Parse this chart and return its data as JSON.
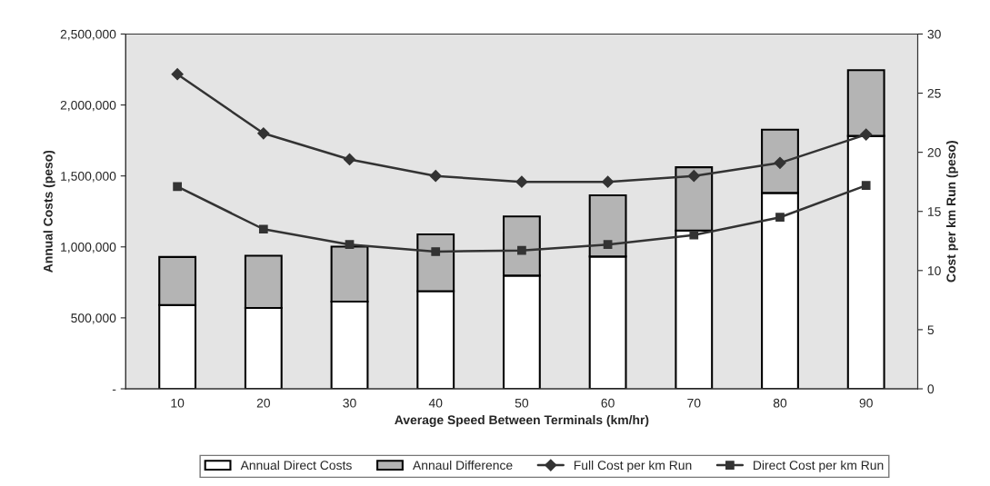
{
  "chart_data": {
    "type": "bar",
    "stacked": true,
    "xlabel": "Average Speed Between Terminals (km/hr)",
    "ylabel": "Annual Costs (peso)",
    "y2label": "Cost per km Run (peso)",
    "categories": [
      "10",
      "20",
      "30",
      "40",
      "50",
      "60",
      "70",
      "80",
      "90"
    ],
    "series": [
      {
        "name": "Annual Direct Costs",
        "color": "#ffffff",
        "values": [
          590000,
          570000,
          615000,
          688000,
          798000,
          932000,
          1115000,
          1380000,
          1782000
        ]
      },
      {
        "name": "Annaul Difference",
        "color": "#b4b4b4",
        "values": [
          339000,
          368000,
          387000,
          400000,
          417000,
          431000,
          446000,
          446000,
          463000
        ]
      },
      {
        "name": "Full Cost per km Run",
        "type": "line",
        "axis": "y2",
        "marker": "diamond",
        "color": "#333333",
        "values": [
          26.6,
          21.6,
          19.4,
          18.0,
          17.5,
          17.5,
          18.0,
          19.1,
          21.5
        ]
      },
      {
        "name": "Direct Cost per km Run",
        "type": "line",
        "axis": "y2",
        "marker": "square",
        "color": "#333333",
        "values": [
          17.1,
          13.5,
          12.2,
          11.6,
          11.7,
          12.2,
          13.0,
          14.5,
          17.2
        ]
      }
    ],
    "ylim": [
      0,
      2500000
    ],
    "yticks": [
      {
        "value": 0,
        "label": "-"
      },
      {
        "value": 500000,
        "label": "500,000"
      },
      {
        "value": 1000000,
        "label": "1,000,000"
      },
      {
        "value": 1500000,
        "label": "1,500,000"
      },
      {
        "value": 2000000,
        "label": "2,000,000"
      },
      {
        "value": 2500000,
        "label": "2,500,000"
      }
    ],
    "y2lim": [
      0,
      30
    ],
    "y2ticks": [
      0,
      5,
      10,
      15,
      20,
      25,
      30
    ],
    "grid": false,
    "legend": "bottom"
  }
}
